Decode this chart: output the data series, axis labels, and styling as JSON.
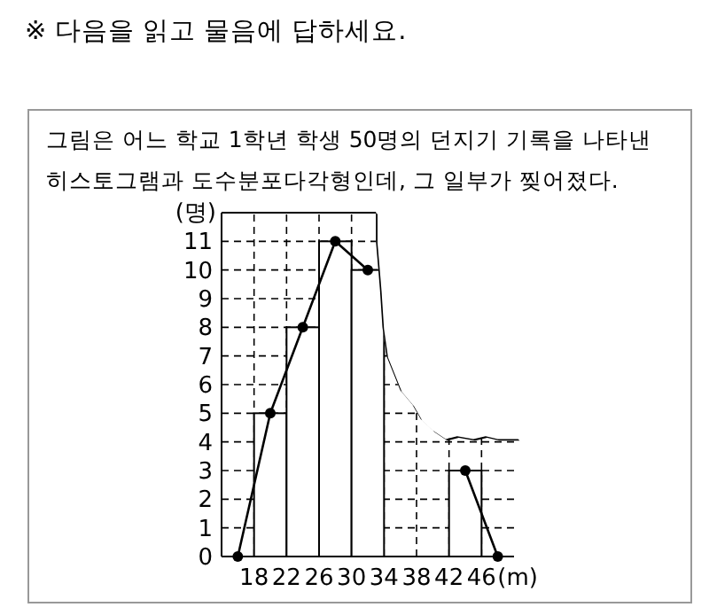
{
  "chart_data": {
    "type": "histogram",
    "title": "※ 다음을 읽고 물음에 답하세요.",
    "subtitle": "그림은 어느 학교 1학년 학생 50명의 던지기 기록을 나타낸 히스토그램과 도수분포다각형인데, 그 일부가 찢어졌다.",
    "xlabel": "(m)",
    "ylabel": "(명)",
    "bins": [
      18,
      22,
      26,
      30,
      34,
      38,
      42,
      46
    ],
    "values": [
      5,
      8,
      11,
      10,
      null,
      null,
      3
    ],
    "color": "#ffffff",
    "series": [
      {
        "type": "line",
        "color": "#000000",
        "x": [
          16,
          20,
          24,
          28,
          32,
          36,
          40,
          44,
          48
        ],
        "values": [
          0,
          5,
          8,
          11,
          10,
          null,
          null,
          3,
          0
        ]
      }
    ],
    "marker": "circle",
    "line_style": "solid",
    "xlim": [
      14,
      50
    ],
    "xticks": [
      18,
      22,
      26,
      30,
      34,
      38,
      42,
      46
    ],
    "ylim": [
      0,
      12
    ],
    "yticks": [
      0,
      1,
      2,
      3,
      4,
      5,
      6,
      7,
      8,
      9,
      10,
      11
    ],
    "grid": true
  }
}
